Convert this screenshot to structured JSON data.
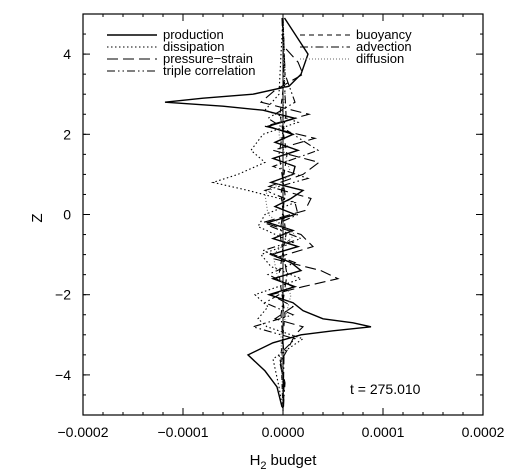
{
  "chart_data": {
    "type": "line",
    "xlabel": "budget",
    "xlabel_symbol": "H",
    "xlabel_subscript": "2",
    "ylabel": "Z",
    "xlim": [
      -0.0002,
      0.0002
    ],
    "ylim": [
      -5,
      5
    ],
    "x_ticks": [
      -0.0002,
      -0.0001,
      0.0,
      0.0001,
      0.0002
    ],
    "x_tick_labels": [
      "−0.0002",
      "−0.0001",
      "0.0000",
      "0.0001",
      "0.0002"
    ],
    "y_ticks": [
      -4,
      -2,
      0,
      2,
      4
    ],
    "y_tick_labels": [
      "−4",
      "−2",
      "0",
      "2",
      "4"
    ],
    "grid": false,
    "annotation": "t = 275.010",
    "legend_placement": "top",
    "series": [
      {
        "name": "production",
        "style": "solid",
        "y": [
          4.9,
          4.5,
          4.0,
          3.5,
          3.2,
          3.0,
          2.9,
          2.8,
          2.7,
          2.6,
          2.4,
          2.2,
          2.0,
          1.8,
          1.6,
          1.4,
          1.2,
          1.0,
          0.8,
          0.6,
          0.4,
          0.2,
          0.0,
          -0.2,
          -0.4,
          -0.6,
          -0.8,
          -1.0,
          -1.2,
          -1.4,
          -1.6,
          -1.8,
          -2.0,
          -2.2,
          -2.4,
          -2.6,
          -2.7,
          -2.8,
          -2.9,
          -3.0,
          -3.2,
          -3.5,
          -3.9,
          -4.3,
          -4.8
        ],
        "x": [
          1.5e-06,
          1.2e-05,
          2.5e-05,
          1.8e-05,
          6e-06,
          -3e-05,
          -8e-05,
          -0.000118,
          -6e-05,
          -2e-05,
          1.2e-05,
          -1.5e-05,
          1e-05,
          -8e-06,
          1.5e-05,
          -1e-05,
          1.2e-05,
          1e-05,
          -1.2e-05,
          2e-05,
          8e-06,
          -8e-06,
          1.2e-05,
          -1.5e-05,
          1e-05,
          -1e-05,
          1.5e-05,
          -1.2e-05,
          8e-06,
          1.8e-05,
          -1e-05,
          1.2e-05,
          -1.4e-05,
          1e-05,
          2e-05,
          4e-05,
          7e-05,
          8.8e-05,
          5e-05,
          1.8e-05,
          -1e-05,
          -3.5e-05,
          -1.8e-05,
          -6e-06,
          -1e-06
        ]
      },
      {
        "name": "dissipation",
        "style": "dotted",
        "y": [
          4.9,
          4.0,
          3.0,
          2.6,
          2.3,
          2.0,
          1.6,
          1.3,
          1.0,
          0.8,
          0.6,
          0.3,
          0.0,
          -0.3,
          -0.7,
          -1.0,
          -1.3,
          -1.6,
          -2.0,
          -2.3,
          -2.6,
          -2.8,
          -3.1,
          -3.6,
          -4.3,
          -4.9
        ],
        "x": [
          0.0,
          -2e-06,
          -4e-06,
          -1.8e-05,
          1.5e-05,
          -2e-05,
          -3.2e-05,
          -1.8e-05,
          -4.5e-05,
          -7e-05,
          -3.5e-05,
          1.2e-05,
          -1.8e-05,
          -2.5e-05,
          1e-05,
          -2.2e-05,
          -1.2e-05,
          1.8e-05,
          -2.8e-05,
          -1.5e-05,
          -2.5e-05,
          -1.6e-05,
          2e-05,
          -1e-05,
          -4e-06,
          0.0
        ]
      },
      {
        "name": "pressure−strain",
        "style": "longdash",
        "y": [
          4.9,
          4.2,
          3.8,
          3.5,
          3.1,
          2.8,
          2.5,
          2.2,
          1.9,
          1.6,
          1.3,
          1.0,
          0.7,
          0.4,
          0.1,
          -0.2,
          -0.5,
          -0.8,
          -1.1,
          -1.4,
          -1.6,
          -1.8,
          -2.0,
          -2.3,
          -2.6,
          -2.8,
          -3.0,
          -3.3,
          -3.7,
          -4.2,
          -4.9
        ],
        "x": [
          -5e-07,
          5e-07,
          1.5e-05,
          2e-05,
          -8e-06,
          -2.2e-05,
          2.6e-05,
          -1.8e-05,
          3.2e-05,
          -1e-05,
          3.6e-05,
          2e-05,
          -1.4e-05,
          2.8e-05,
          2.2e-05,
          -2e-05,
          1.8e-05,
          3e-05,
          -1e-05,
          3.8e-05,
          5.5e-05,
          2e-05,
          -1.2e-05,
          1e-05,
          -8e-06,
          2e-05,
          1.2e-05,
          6e-06,
          -3e-06,
          1e-06,
          5e-07
        ]
      },
      {
        "name": "triple correlation",
        "style": "dashdotdot",
        "y": [
          4.9,
          3.5,
          2.8,
          2.4,
          2.0,
          1.6,
          1.2,
          0.9,
          0.6,
          0.3,
          0.0,
          -0.3,
          -0.6,
          -0.9,
          -1.2,
          -1.5,
          -1.8,
          -2.2,
          -2.5,
          -2.8,
          -3.1,
          -3.5,
          -4.2,
          -4.9
        ],
        "x": [
          0.0,
          2e-06,
          1.2e-05,
          -1.5e-05,
          1e-05,
          3.5e-05,
          -1e-05,
          2.5e-05,
          -1.8e-05,
          1.2e-05,
          1.5e-05,
          -1.2e-05,
          1.8e-05,
          -2e-05,
          1.2e-05,
          -1.5e-05,
          1e-05,
          -1.8e-05,
          1e-05,
          -3e-05,
          1.2e-05,
          -4e-06,
          2e-06,
          0.0
        ]
      },
      {
        "name": "buoyancy",
        "style": "shortdash",
        "y": [
          4.9,
          3.5,
          2.5,
          1.5,
          0.5,
          -0.5,
          -1.5,
          -2.5,
          -3.5,
          -4.9
        ],
        "x": [
          0.0,
          2e-06,
          -3e-06,
          4e-06,
          -2e-06,
          3e-06,
          -4e-06,
          2e-06,
          -2e-06,
          0.0
        ]
      },
      {
        "name": "advection",
        "style": "dashdot",
        "y": [
          4.9,
          3.5,
          2.5,
          1.5,
          0.5,
          -0.5,
          -1.5,
          -2.5,
          -3.5,
          -4.9
        ],
        "x": [
          -1e-06,
          1e-06,
          3e-06,
          -4e-06,
          2e-06,
          -3e-06,
          4e-06,
          -2e-06,
          1e-06,
          0.0
        ]
      },
      {
        "name": "diffusion",
        "style": "finedot",
        "y": [
          4.9,
          3.0,
          2.0,
          1.0,
          0.5,
          0.0,
          -0.5,
          -1.0,
          -1.5,
          -2.0,
          -3.0,
          -4.9
        ],
        "x": [
          0.0,
          2e-06,
          -4e-06,
          8e-06,
          -1.8e-05,
          -1.5e-05,
          1.2e-05,
          -1e-05,
          -6e-06,
          8e-06,
          -2e-06,
          0.0
        ]
      }
    ]
  }
}
